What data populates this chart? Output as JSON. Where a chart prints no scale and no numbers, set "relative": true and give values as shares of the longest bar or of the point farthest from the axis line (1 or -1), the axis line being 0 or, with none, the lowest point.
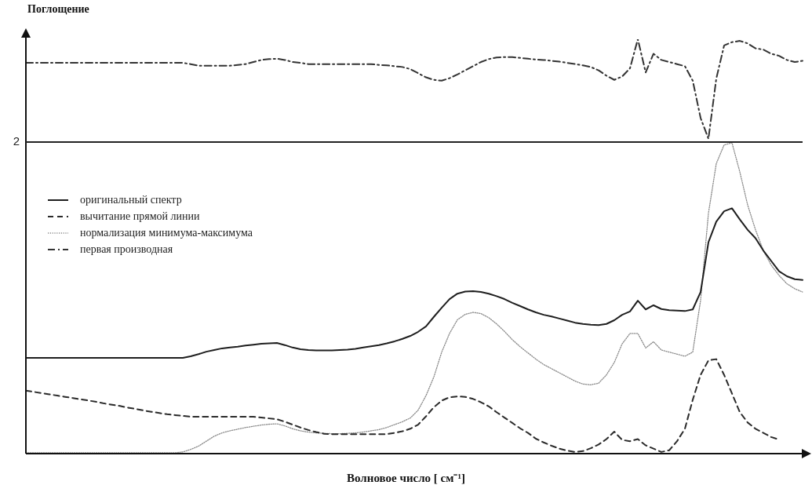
{
  "chart_data": {
    "type": "line",
    "relative": true,
    "xlabel": "Волновое число [ см⁻¹]",
    "ylabel": "Поглощение",
    "legend": "top left",
    "categories": [
      null,
      null,
      null,
      null,
      null,
      null,
      null,
      null,
      null,
      null,
      null,
      null,
      null,
      null,
      null,
      null,
      null,
      null,
      null,
      null,
      null,
      null,
      null,
      null,
      null,
      null,
      null,
      null,
      null,
      null,
      null,
      null,
      null,
      null,
      null,
      null,
      null,
      null,
      null,
      null,
      null,
      null,
      null,
      null,
      null,
      null,
      null,
      null,
      null,
      null,
      null,
      null,
      null,
      null,
      null,
      null,
      null,
      null,
      null,
      null,
      null,
      null,
      null,
      null,
      null,
      null,
      null,
      null,
      null,
      null,
      null,
      null,
      null,
      null,
      null,
      null,
      null,
      null,
      null,
      null,
      null,
      null,
      null,
      null,
      null,
      null,
      null,
      null,
      null,
      null,
      null,
      null,
      null,
      null,
      null,
      null,
      null,
      null,
      null,
      null
    ],
    "ref_lines": [
      {
        "axis": "y",
        "value": 0.752,
        "color": "#222222",
        "line_style": "solid"
      }
    ],
    "annotations": [
      "2"
    ],
    "series": [
      {
        "name": "оригинальный спектр",
        "color": "#1e1e1e",
        "line_style": "solid",
        "values": [
          0.231,
          0.231,
          0.231,
          0.231,
          0.231,
          0.231,
          0.231,
          0.231,
          0.231,
          0.231,
          0.231,
          0.231,
          0.231,
          0.231,
          0.231,
          0.231,
          0.231,
          0.231,
          0.231,
          0.231,
          0.231,
          0.235,
          0.24,
          0.246,
          0.25,
          0.254,
          0.256,
          0.258,
          0.261,
          0.263,
          0.265,
          0.266,
          0.267,
          0.262,
          0.256,
          0.252,
          0.25,
          0.249,
          0.249,
          0.249,
          0.25,
          0.251,
          0.253,
          0.256,
          0.259,
          0.262,
          0.266,
          0.271,
          0.277,
          0.284,
          0.294,
          0.307,
          0.33,
          0.352,
          0.373,
          0.386,
          0.391,
          0.392,
          0.39,
          0.386,
          0.38,
          0.373,
          0.364,
          0.356,
          0.348,
          0.341,
          0.335,
          0.331,
          0.326,
          0.321,
          0.316,
          0.313,
          0.311,
          0.31,
          0.313,
          0.322,
          0.335,
          0.343,
          0.369,
          0.348,
          0.358,
          0.349,
          0.346,
          0.345,
          0.344,
          0.348,
          0.39,
          0.51,
          0.56,
          0.585,
          0.592,
          0.565,
          0.54,
          0.52,
          0.49,
          0.465,
          0.44,
          0.428,
          0.421,
          0.419
        ]
      },
      {
        "name": "вычитание прямой линии",
        "color": "#2a2a2a",
        "line_style": "dashed",
        "values": [
          0.152,
          0.149,
          0.146,
          0.143,
          0.14,
          0.137,
          0.134,
          0.131,
          0.128,
          0.125,
          0.121,
          0.118,
          0.115,
          0.111,
          0.108,
          0.104,
          0.101,
          0.098,
          0.095,
          0.093,
          0.091,
          0.089,
          0.089,
          0.089,
          0.089,
          0.089,
          0.089,
          0.089,
          0.089,
          0.089,
          0.087,
          0.085,
          0.083,
          0.077,
          0.07,
          0.063,
          0.057,
          0.052,
          0.048,
          0.047,
          0.047,
          0.047,
          0.047,
          0.047,
          0.047,
          0.047,
          0.047,
          0.05,
          0.054,
          0.06,
          0.07,
          0.09,
          0.112,
          0.128,
          0.136,
          0.138,
          0.137,
          0.132,
          0.124,
          0.114,
          0.1,
          0.087,
          0.074,
          0.061,
          0.05,
          0.036,
          0.027,
          0.019,
          0.012,
          0.007,
          0.004,
          0.006,
          0.013,
          0.022,
          0.035,
          0.053,
          0.033,
          0.03,
          0.035,
          0.02,
          0.012,
          0.004,
          0.008,
          0.03,
          0.06,
          0.13,
          0.19,
          0.225,
          0.228,
          0.19,
          0.145,
          0.1,
          0.075,
          0.06,
          0.05,
          0.04,
          0.034,
          null,
          null,
          null
        ]
      },
      {
        "name": "нормализация минимума-максимума",
        "color": "#8a8a8a",
        "line_style": "dotted",
        "values": [
          0.002,
          0.002,
          0.002,
          0.002,
          0.002,
          0.002,
          0.002,
          0.002,
          0.002,
          0.002,
          0.002,
          0.002,
          0.002,
          0.002,
          0.002,
          0.002,
          0.002,
          0.002,
          0.002,
          0.002,
          0.004,
          0.01,
          0.018,
          0.03,
          0.042,
          0.05,
          0.055,
          0.059,
          0.063,
          0.066,
          0.069,
          0.071,
          0.072,
          0.067,
          0.06,
          0.055,
          0.052,
          0.05,
          0.049,
          0.048,
          0.048,
          0.049,
          0.05,
          0.052,
          0.055,
          0.058,
          0.063,
          0.07,
          0.077,
          0.086,
          0.105,
          0.14,
          0.185,
          0.245,
          0.29,
          0.323,
          0.336,
          0.341,
          0.338,
          0.328,
          0.313,
          0.295,
          0.275,
          0.258,
          0.243,
          0.228,
          0.215,
          0.205,
          0.195,
          0.185,
          0.175,
          0.168,
          0.166,
          0.17,
          0.19,
          0.22,
          0.265,
          0.29,
          0.29,
          0.255,
          0.27,
          0.25,
          0.245,
          0.24,
          0.235,
          0.245,
          0.37,
          0.58,
          0.7,
          0.745,
          0.75,
          0.68,
          0.6,
          0.54,
          0.49,
          0.455,
          0.43,
          0.41,
          0.398,
          0.39
        ]
      },
      {
        "name": "первая производная",
        "color": "#333333",
        "line_style": "dashdot",
        "values": [
          0.943,
          0.943,
          0.943,
          0.943,
          0.943,
          0.943,
          0.943,
          0.943,
          0.943,
          0.943,
          0.943,
          0.943,
          0.943,
          0.943,
          0.943,
          0.943,
          0.943,
          0.943,
          0.943,
          0.943,
          0.943,
          0.94,
          0.936,
          0.936,
          0.936,
          0.936,
          0.936,
          0.938,
          0.94,
          0.945,
          0.95,
          0.952,
          0.953,
          0.95,
          0.945,
          0.943,
          0.94,
          0.94,
          0.94,
          0.94,
          0.94,
          0.94,
          0.94,
          0.94,
          0.94,
          0.938,
          0.937,
          0.935,
          0.933,
          0.928,
          0.918,
          0.908,
          0.902,
          0.9,
          0.906,
          0.915,
          0.925,
          0.935,
          0.945,
          0.952,
          0.956,
          0.957,
          0.957,
          0.955,
          0.953,
          0.951,
          0.95,
          0.948,
          0.946,
          0.943,
          0.94,
          0.937,
          0.933,
          0.925,
          0.912,
          0.902,
          0.91,
          0.93,
          1.0,
          0.92,
          0.965,
          0.95,
          0.945,
          0.94,
          0.935,
          0.9,
          0.81,
          0.76,
          0.905,
          0.985,
          0.993,
          0.996,
          0.99,
          0.978,
          0.975,
          0.965,
          0.96,
          0.95,
          0.945,
          0.948
        ]
      }
    ]
  }
}
